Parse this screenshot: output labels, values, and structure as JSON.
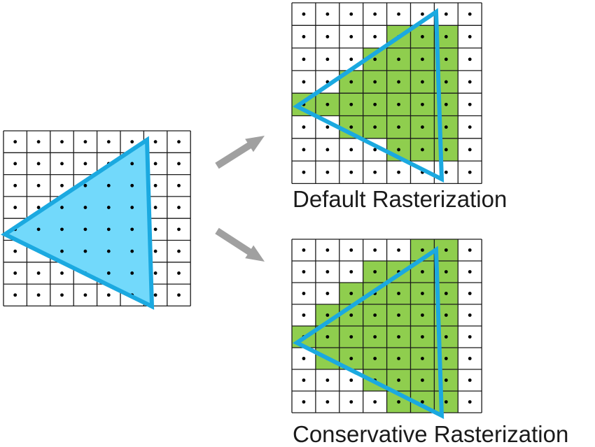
{
  "grid": {
    "rows": 8,
    "cols": 8,
    "sample_point": "cell-center"
  },
  "colors": {
    "grid_line": "#1a1a1a",
    "sample_dot": "#000000",
    "triangle_fill": "#72d9fb",
    "triangle_stroke": "#1ba9e0",
    "covered_cell": "#8fce4e",
    "arrow": "#a0a0a0"
  },
  "panels": [
    {
      "id": "source",
      "caption": "",
      "covered": []
    },
    {
      "id": "default",
      "caption": "Default Rasterization",
      "covered": [
        [
          1,
          4
        ],
        [
          1,
          5
        ],
        [
          1,
          6
        ],
        [
          2,
          3
        ],
        [
          2,
          4
        ],
        [
          2,
          5
        ],
        [
          2,
          6
        ],
        [
          3,
          2
        ],
        [
          3,
          3
        ],
        [
          3,
          4
        ],
        [
          3,
          5
        ],
        [
          3,
          6
        ],
        [
          4,
          0
        ],
        [
          4,
          1
        ],
        [
          4,
          2
        ],
        [
          4,
          3
        ],
        [
          4,
          4
        ],
        [
          4,
          5
        ],
        [
          4,
          6
        ],
        [
          5,
          2
        ],
        [
          5,
          3
        ],
        [
          5,
          4
        ],
        [
          5,
          5
        ],
        [
          5,
          6
        ],
        [
          6,
          4
        ],
        [
          6,
          5
        ],
        [
          6,
          6
        ]
      ]
    },
    {
      "id": "conservative",
      "caption": "Conservative Rasterization",
      "covered": [
        [
          0,
          5
        ],
        [
          0,
          6
        ],
        [
          1,
          3
        ],
        [
          1,
          4
        ],
        [
          1,
          5
        ],
        [
          1,
          6
        ],
        [
          2,
          2
        ],
        [
          2,
          3
        ],
        [
          2,
          4
        ],
        [
          2,
          5
        ],
        [
          2,
          6
        ],
        [
          3,
          1
        ],
        [
          3,
          2
        ],
        [
          3,
          3
        ],
        [
          3,
          4
        ],
        [
          3,
          5
        ],
        [
          3,
          6
        ],
        [
          4,
          0
        ],
        [
          4,
          1
        ],
        [
          4,
          2
        ],
        [
          4,
          3
        ],
        [
          4,
          4
        ],
        [
          4,
          5
        ],
        [
          4,
          6
        ],
        [
          5,
          1
        ],
        [
          5,
          2
        ],
        [
          5,
          3
        ],
        [
          5,
          4
        ],
        [
          5,
          5
        ],
        [
          5,
          6
        ],
        [
          6,
          3
        ],
        [
          6,
          4
        ],
        [
          6,
          5
        ],
        [
          6,
          6
        ],
        [
          7,
          4
        ],
        [
          7,
          5
        ],
        [
          7,
          6
        ]
      ]
    }
  ],
  "arrows": [
    {
      "from": "source",
      "to": "default"
    },
    {
      "from": "source",
      "to": "conservative"
    }
  ]
}
